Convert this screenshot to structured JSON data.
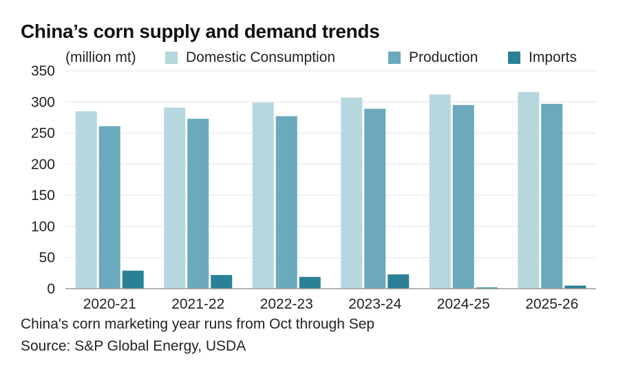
{
  "chart_data": {
    "type": "bar",
    "title": "China’s corn supply and demand trends",
    "unit_label": "(million mt)",
    "categories": [
      "2020-21",
      "2021-22",
      "2022-23",
      "2023-24",
      "2024-25",
      "2025-26"
    ],
    "series": [
      {
        "name": "Domestic Consumption",
        "color": "#b7d7de",
        "values": [
          285,
          291,
          299,
          307,
          312,
          316
        ]
      },
      {
        "name": "Production",
        "color": "#6ba9bc",
        "values": [
          261,
          273,
          277,
          289,
          295,
          297
        ]
      },
      {
        "name": "Imports",
        "color": "#2a8196",
        "values": [
          29,
          22,
          19,
          23,
          2,
          5
        ]
      }
    ],
    "ylim": [
      0,
      350
    ],
    "yticks": [
      0,
      50,
      100,
      150,
      200,
      250,
      300,
      350
    ],
    "grid": true,
    "legend_position": "top"
  },
  "footnotes": [
    "China's corn marketing year runs from Oct through Sep",
    "Source: S&P Global Energy, USDA"
  ]
}
